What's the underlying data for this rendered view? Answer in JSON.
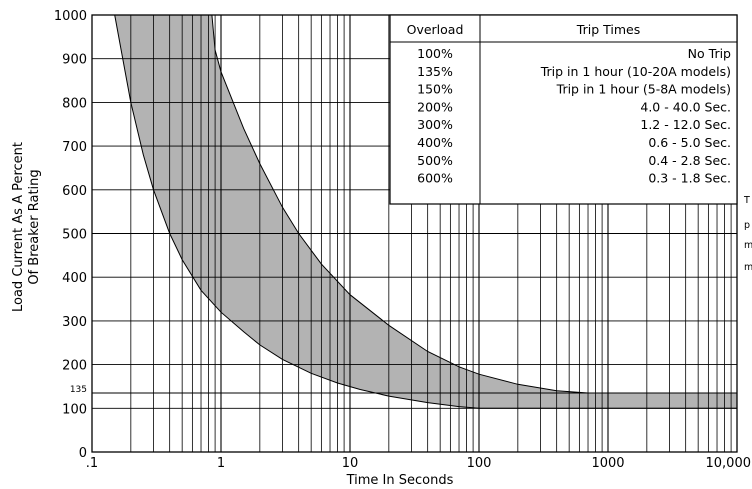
{
  "chart_data": {
    "type": "area",
    "xlabel": "Time In Seconds",
    "ylabel_lines": [
      "Load Current As A Percent",
      "Of Breaker Rating"
    ],
    "x_scale": "log",
    "xlim": [
      0.1,
      10000
    ],
    "ylim": [
      0,
      1000
    ],
    "grid": true,
    "x_ticks": [
      {
        "value": 0.1,
        "label": ".1"
      },
      {
        "value": 1,
        "label": "1"
      },
      {
        "value": 10,
        "label": "10"
      },
      {
        "value": 100,
        "label": "100"
      },
      {
        "value": 1000,
        "label": "1000"
      },
      {
        "value": 10000,
        "label": "10,000"
      }
    ],
    "y_ticks": [
      {
        "value": 0,
        "label": "0"
      },
      {
        "value": 100,
        "label": "100"
      },
      {
        "value": 200,
        "label": "200"
      },
      {
        "value": 300,
        "label": "300"
      },
      {
        "value": 400,
        "label": "400"
      },
      {
        "value": 500,
        "label": "500"
      },
      {
        "value": 600,
        "label": "600"
      },
      {
        "value": 700,
        "label": "700"
      },
      {
        "value": 800,
        "label": "800"
      },
      {
        "value": 900,
        "label": "900"
      },
      {
        "value": 1000,
        "label": "1000"
      }
    ],
    "reference_line": {
      "value": 135,
      "label": "135"
    },
    "fill_color": "#b3b3b3",
    "band": {
      "lower_edge": [
        {
          "x": 0.15,
          "y": 1000
        },
        {
          "x": 0.2,
          "y": 800
        },
        {
          "x": 0.25,
          "y": 680
        },
        {
          "x": 0.3,
          "y": 600
        },
        {
          "x": 0.4,
          "y": 500
        },
        {
          "x": 0.5,
          "y": 440
        },
        {
          "x": 0.7,
          "y": 370
        },
        {
          "x": 1,
          "y": 320
        },
        {
          "x": 1.5,
          "y": 275
        },
        {
          "x": 2,
          "y": 245
        },
        {
          "x": 3,
          "y": 212
        },
        {
          "x": 5,
          "y": 180
        },
        {
          "x": 8,
          "y": 158
        },
        {
          "x": 12,
          "y": 143
        },
        {
          "x": 20,
          "y": 128
        },
        {
          "x": 40,
          "y": 113
        },
        {
          "x": 70,
          "y": 104
        },
        {
          "x": 100,
          "y": 100
        },
        {
          "x": 10000,
          "y": 100
        }
      ],
      "upper_edge": [
        {
          "x": 0.85,
          "y": 1000
        },
        {
          "x": 0.9,
          "y": 920
        },
        {
          "x": 1,
          "y": 870
        },
        {
          "x": 1.5,
          "y": 740
        },
        {
          "x": 2,
          "y": 660
        },
        {
          "x": 3,
          "y": 560
        },
        {
          "x": 4,
          "y": 500
        },
        {
          "x": 6,
          "y": 430
        },
        {
          "x": 10,
          "y": 360
        },
        {
          "x": 20,
          "y": 290
        },
        {
          "x": 40,
          "y": 230
        },
        {
          "x": 70,
          "y": 195
        },
        {
          "x": 100,
          "y": 178
        },
        {
          "x": 200,
          "y": 155
        },
        {
          "x": 400,
          "y": 140
        },
        {
          "x": 700,
          "y": 135
        },
        {
          "x": 10000,
          "y": 135
        }
      ]
    },
    "table": {
      "headers": [
        "Overload",
        "Trip Times"
      ],
      "rows": [
        [
          "100%",
          "No Trip"
        ],
        [
          "135%",
          "Trip in 1 hour (10-20A models)"
        ],
        [
          "150%",
          "Trip in 1 hour (5-8A models)"
        ],
        [
          "200%",
          "4.0 - 40.0 Sec."
        ],
        [
          "300%",
          "1.2 - 12.0 Sec."
        ],
        [
          "400%",
          "0.6 - 5.0 Sec."
        ],
        [
          "500%",
          "0.4 - 2.8 Sec."
        ],
        [
          "600%",
          "0.3 - 1.8 Sec."
        ]
      ]
    },
    "side_text": [
      "T",
      "p",
      "m",
      "m"
    ]
  }
}
